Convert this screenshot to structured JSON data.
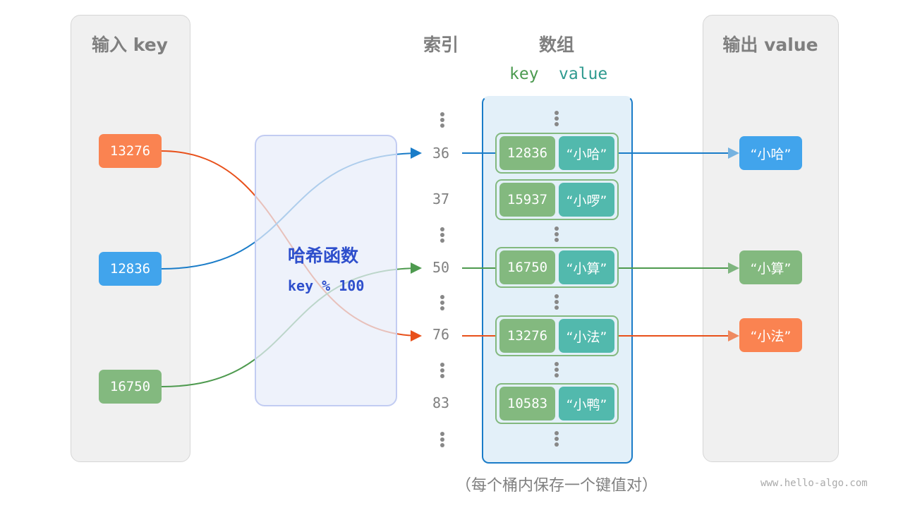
{
  "headers": {
    "input": "输入 key",
    "index": "索引",
    "array": "数组",
    "key": "key",
    "value": "value",
    "output": "输出 value"
  },
  "inputs": [
    {
      "key": "13276",
      "color": "#fa8351"
    },
    {
      "key": "12836",
      "color": "#41a4ec"
    },
    {
      "key": "16750",
      "color": "#83b97f"
    }
  ],
  "hash_function": {
    "title": "哈希函数",
    "formula": "key % 100"
  },
  "indices": [
    "36",
    "37",
    "50",
    "76",
    "83"
  ],
  "buckets": [
    {
      "key": "12836",
      "value": "“小哈”"
    },
    {
      "key": "15937",
      "value": "“小啰”"
    },
    {
      "key": "16750",
      "value": "“小算”"
    },
    {
      "key": "13276",
      "value": "“小法”"
    },
    {
      "key": "10583",
      "value": "“小鸭”"
    }
  ],
  "outputs": [
    {
      "value": "“小哈”",
      "color": "#41a4ec"
    },
    {
      "value": "“小算”",
      "color": "#83b97f"
    },
    {
      "value": "“小法”",
      "color": "#fa8351"
    }
  ],
  "caption": "（每个桶内保存一个键值对）",
  "watermark": "www.hello-algo.com"
}
